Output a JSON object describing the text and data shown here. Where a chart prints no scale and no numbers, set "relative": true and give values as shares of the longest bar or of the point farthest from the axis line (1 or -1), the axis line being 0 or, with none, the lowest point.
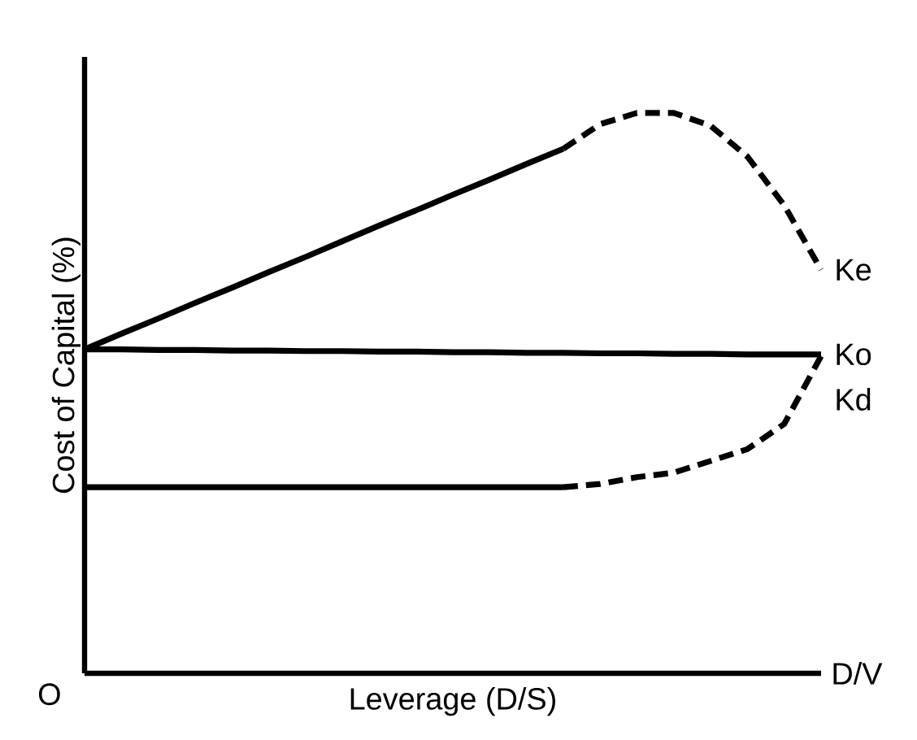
{
  "chart_data": {
    "type": "line",
    "relative": true,
    "xlabel": "Leverage (D/S)",
    "ylabel": "Cost of Capital (%)",
    "categories": [
      null,
      null,
      null,
      null,
      null,
      null,
      null,
      null,
      null,
      null,
      null,
      null,
      null,
      null,
      null,
      null,
      null,
      null,
      null,
      null,
      null
    ],
    "series": [
      {
        "color": "#000000",
        "line_style": "solid",
        "values": [
          0.578,
          0.606,
          0.633,
          0.661,
          0.688,
          0.716,
          0.743,
          0.771,
          0.799,
          0.826,
          0.854,
          0.881,
          0.909,
          0.936,
          null,
          null,
          null,
          null,
          null,
          null,
          null
        ]
      },
      {
        "name": "Ke",
        "color": "#000000",
        "line_style": "dashed",
        "values": [
          null,
          null,
          null,
          null,
          null,
          null,
          null,
          null,
          null,
          null,
          null,
          null,
          null,
          0.936,
          0.98,
          1.0,
          1.0,
          0.977,
          0.922,
          0.835,
          0.72
        ]
      },
      {
        "name": "Ko",
        "color": "#000000",
        "line_style": "solid",
        "values": [
          0.578,
          0.578,
          0.577,
          0.577,
          0.576,
          0.576,
          0.575,
          0.575,
          0.574,
          0.574,
          0.573,
          0.573,
          0.572,
          0.572,
          0.571,
          0.571,
          0.57,
          0.57,
          0.569,
          0.569,
          0.569
        ]
      },
      {
        "color": "#000000",
        "line_style": "solid",
        "values": [
          0.332,
          0.332,
          0.332,
          0.332,
          0.332,
          0.332,
          0.332,
          0.332,
          0.332,
          0.332,
          0.332,
          0.332,
          0.332,
          0.332,
          null,
          null,
          null,
          null,
          null,
          null,
          null
        ]
      },
      {
        "name": "Kd",
        "color": "#000000",
        "line_style": "dashed",
        "values": [
          null,
          null,
          null,
          null,
          null,
          null,
          null,
          null,
          null,
          null,
          null,
          null,
          null,
          0.332,
          0.338,
          0.35,
          0.358,
          0.379,
          0.4,
          0.445,
          0.566
        ]
      }
    ],
    "annotations": [
      "O",
      "D/V"
    ]
  }
}
